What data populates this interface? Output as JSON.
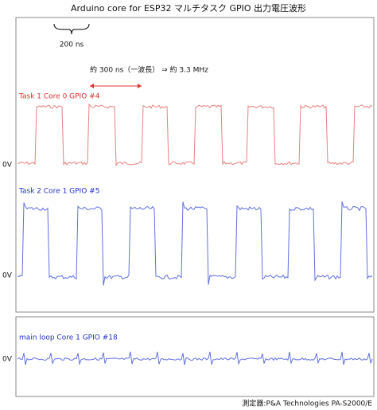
{
  "title": "Arduino core for ESP32 マルチタスク GPIO 出力電圧波形",
  "scale_note": "200 ns",
  "period_note": "約 300 ns（一波長） ⇒ 約 3.3 MHz",
  "channels": [
    {
      "label": "Task 1  Core 0  GPIO #4",
      "zero": "0V"
    },
    {
      "label": "Task 2  Core 1  GPIO #5",
      "zero": "0V"
    },
    {
      "label": "main loop  Core 1  GPIO #18",
      "zero": "0V"
    }
  ],
  "footer": "測定器:P&A Technologies PA-S2000/E"
}
